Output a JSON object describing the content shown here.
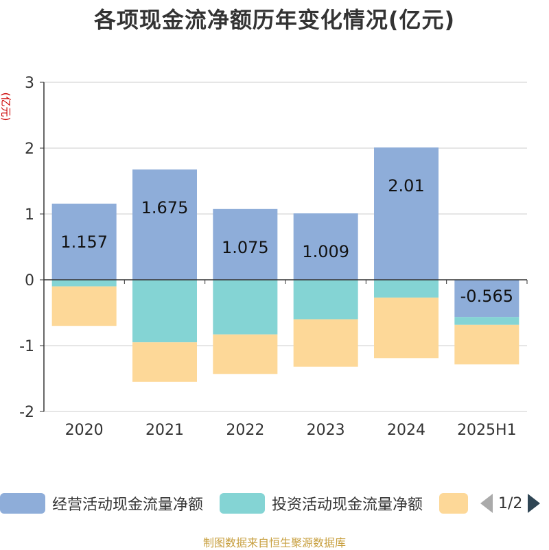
{
  "title": "各项现金流净额历年变化情况(亿元)",
  "y_unit": "(亿元)",
  "source": "制图数据来自恒生聚源数据库",
  "legend": {
    "items": [
      {
        "label": "经营活动现金流量净额",
        "color": "#8eadd9"
      },
      {
        "label": "投资活动现金流量净额",
        "color": "#84d4d4"
      },
      {
        "label": "",
        "color": "#fdd898"
      }
    ],
    "page": "1/2"
  },
  "chart_data": {
    "type": "bar",
    "stacked": true,
    "categories": [
      "2020",
      "2021",
      "2022",
      "2023",
      "2024",
      "2025H1"
    ],
    "ylim": [
      -2,
      3
    ],
    "yticks": [
      -2,
      -1,
      0,
      1,
      2,
      3
    ],
    "grid": true,
    "legend_position": "bottom",
    "series": [
      {
        "name": "经营活动现金流量净额",
        "color": "#8eadd9",
        "values": [
          1.157,
          1.675,
          1.075,
          1.009,
          2.01,
          -0.565
        ],
        "labels": [
          "1.157",
          "1.675",
          "1.075",
          "1.009",
          "2.01",
          "-0.565"
        ]
      },
      {
        "name": "投资活动现金流量净额",
        "color": "#84d4d4",
        "values": [
          -0.1,
          -0.95,
          -0.83,
          -0.6,
          -0.27,
          -0.12
        ]
      },
      {
        "name": "",
        "color": "#fdd898",
        "values": [
          -0.6,
          -0.6,
          -0.6,
          -0.72,
          -0.92,
          -0.6
        ]
      }
    ]
  }
}
